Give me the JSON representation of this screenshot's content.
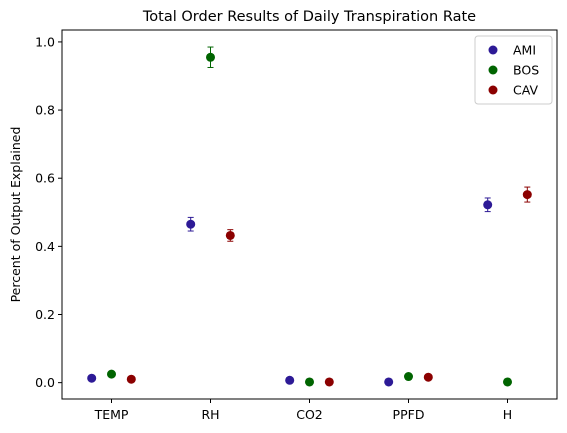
{
  "chart_data": {
    "type": "scatter",
    "title": "Total Order Results of Daily Transpiration Rate",
    "xlabel": "",
    "ylabel": "Percent of Output Explained",
    "categories": [
      "TEMP",
      "RH",
      "CO2",
      "PPFD",
      "H"
    ],
    "ylim": [
      -0.048,
      1.035
    ],
    "yticks": [
      0.0,
      0.2,
      0.4,
      0.6,
      0.8,
      1.0
    ],
    "ytick_labels": [
      "0.0",
      "0.2",
      "0.4",
      "0.6",
      "0.8",
      "1.0"
    ],
    "grid": false,
    "legend_position": "top-right",
    "series": [
      {
        "name": "AMI",
        "color": "#2d1a96",
        "values": [
          0.013,
          0.465,
          0.007,
          0.002,
          0.522
        ],
        "errors": [
          0.004,
          0.02,
          0.003,
          0.002,
          0.02
        ]
      },
      {
        "name": "BOS",
        "color": "#006400",
        "values": [
          0.025,
          0.955,
          0.002,
          0.018,
          0.002
        ],
        "errors": [
          0.004,
          0.03,
          0.002,
          0.004,
          0.002
        ]
      },
      {
        "name": "CAV",
        "color": "#8b0000",
        "values": [
          0.01,
          0.432,
          0.002,
          0.016,
          0.552
        ],
        "errors": [
          0.004,
          0.017,
          0.002,
          0.004,
          0.022
        ]
      }
    ]
  }
}
